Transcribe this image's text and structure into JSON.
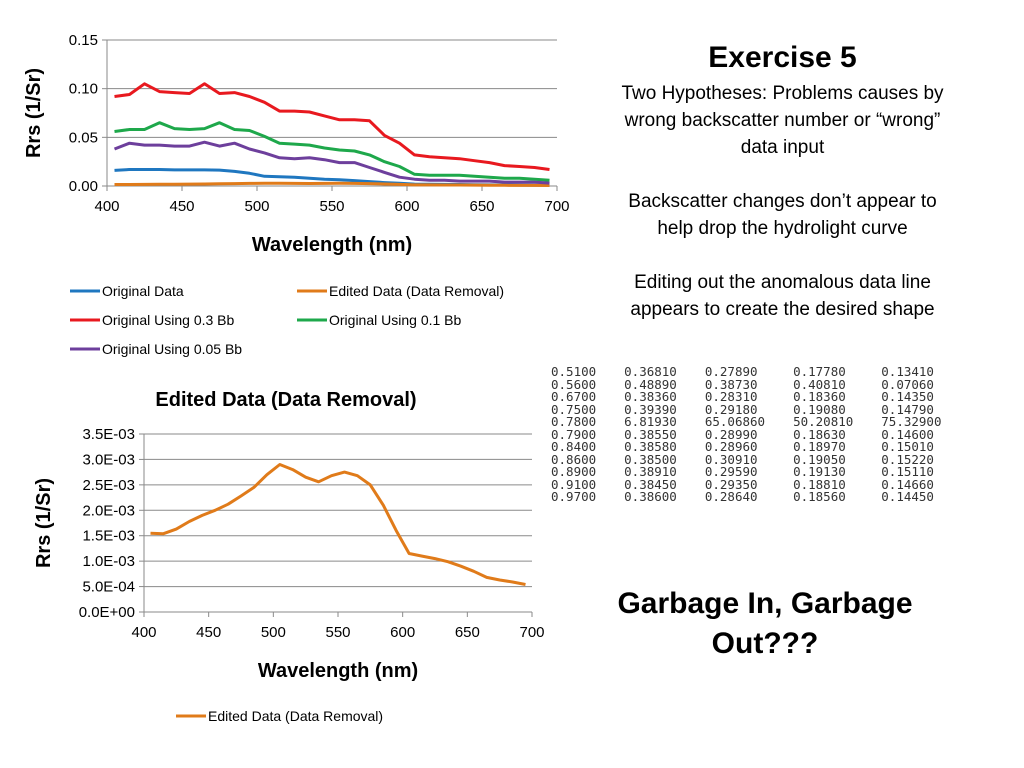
{
  "exercise": {
    "title": "Exercise 5",
    "paragraphs": [
      "Two Hypotheses: Problems causes by wrong backscatter number or “wrong” data input",
      "Backscatter changes don’t appear to help drop the hydrolight curve",
      "Editing out the anomalous data line appears to create the desired shape"
    ],
    "conclusion": "Garbage In, Garbage Out???"
  },
  "data_table": {
    "rows": [
      [
        "0.5100",
        "0.36810",
        "0.27890",
        "0.17780",
        "0.13410"
      ],
      [
        "0.5600",
        "0.48890",
        "0.38730",
        "0.40810",
        "0.07060"
      ],
      [
        "0.6700",
        "0.38360",
        "0.28310",
        "0.18360",
        "0.14350"
      ],
      [
        "0.7500",
        "0.39390",
        "0.29180",
        "0.19080",
        "0.14790"
      ],
      [
        "0.7800",
        "6.81930",
        "65.06860",
        "50.20810",
        "75.32900"
      ],
      [
        "0.7900",
        "0.38550",
        "0.28990",
        "0.18630",
        "0.14600"
      ],
      [
        "0.8400",
        "0.38580",
        "0.28960",
        "0.18970",
        "0.15010"
      ],
      [
        "0.8600",
        "0.38500",
        "0.30910",
        "0.19050",
        "0.15220"
      ],
      [
        "0.8900",
        "0.38910",
        "0.29590",
        "0.19130",
        "0.15110"
      ],
      [
        "0.9100",
        "0.38450",
        "0.29350",
        "0.18810",
        "0.14660"
      ],
      [
        "0.9700",
        "0.38600",
        "0.28640",
        "0.18560",
        "0.14450"
      ]
    ]
  },
  "chart_data": [
    {
      "type": "line",
      "title": "",
      "xlabel": "Wavelength (nm)",
      "ylabel": "Rrs (1/Sr)",
      "xlim": [
        400,
        700
      ],
      "ylim": [
        0,
        0.15
      ],
      "x_ticks": [
        "400",
        "450",
        "500",
        "550",
        "600",
        "650",
        "700"
      ],
      "y_ticks": [
        "0.00",
        "0.05",
        "0.10",
        "0.15"
      ],
      "grid": "horizontal",
      "legend_position": "bottom",
      "x": [
        405,
        415,
        425,
        435,
        445,
        455,
        465,
        475,
        485,
        495,
        505,
        515,
        525,
        535,
        545,
        555,
        565,
        575,
        585,
        595,
        605,
        615,
        625,
        635,
        645,
        655,
        665,
        675,
        685,
        695
      ],
      "series": [
        {
          "name": "Original Data",
          "color": "#1f77c0",
          "values": [
            0.016,
            0.017,
            0.017,
            0.017,
            0.0165,
            0.0165,
            0.0165,
            0.0163,
            0.015,
            0.013,
            0.01,
            0.0095,
            0.009,
            0.008,
            0.007,
            0.0065,
            0.0055,
            0.0045,
            0.0035,
            0.0028,
            0.002,
            0.0018,
            0.0016,
            0.0015,
            0.0013,
            0.0011,
            0.001,
            0.0009,
            0.0008,
            0.0007
          ]
        },
        {
          "name": "Edited Data (Data Removal)",
          "color": "#e07b1a",
          "values": [
            0.00155,
            0.00155,
            0.00165,
            0.0018,
            0.0019,
            0.002,
            0.0021,
            0.0023,
            0.0025,
            0.0027,
            0.0029,
            0.0028,
            0.00265,
            0.00255,
            0.0027,
            0.00275,
            0.0027,
            0.0025,
            0.0021,
            0.0016,
            0.00115,
            0.0011,
            0.00105,
            0.001,
            0.0009,
            0.0008,
            0.00068,
            0.00063,
            0.00058,
            0.00053
          ]
        },
        {
          "name": "Original Using 0.3 Bb",
          "color": "#e8191f",
          "values": [
            0.092,
            0.094,
            0.105,
            0.097,
            0.096,
            0.095,
            0.105,
            0.095,
            0.096,
            0.092,
            0.086,
            0.077,
            0.077,
            0.076,
            0.072,
            0.068,
            0.068,
            0.067,
            0.052,
            0.044,
            0.032,
            0.03,
            0.029,
            0.028,
            0.026,
            0.024,
            0.021,
            0.02,
            0.019,
            0.017
          ]
        },
        {
          "name": "Original Using 0.1 Bb",
          "color": "#1ea84b",
          "values": [
            0.056,
            0.058,
            0.058,
            0.065,
            0.059,
            0.058,
            0.059,
            0.065,
            0.058,
            0.057,
            0.051,
            0.044,
            0.043,
            0.042,
            0.039,
            0.037,
            0.036,
            0.032,
            0.025,
            0.02,
            0.012,
            0.011,
            0.011,
            0.011,
            0.01,
            0.009,
            0.008,
            0.008,
            0.007,
            0.006
          ]
        },
        {
          "name": "Original Using 0.05 Bb",
          "color": "#6d3f9c",
          "values": [
            0.038,
            0.044,
            0.042,
            0.042,
            0.041,
            0.041,
            0.045,
            0.041,
            0.044,
            0.038,
            0.034,
            0.029,
            0.028,
            0.029,
            0.027,
            0.024,
            0.024,
            0.019,
            0.014,
            0.009,
            0.007,
            0.006,
            0.006,
            0.005,
            0.005,
            0.005,
            0.004,
            0.004,
            0.004,
            0.003
          ]
        }
      ]
    },
    {
      "type": "line",
      "title": "Edited Data (Data Removal)",
      "xlabel": "Wavelength (nm)",
      "ylabel": "Rrs (1/Sr)",
      "xlim": [
        400,
        700
      ],
      "ylim": [
        0,
        0.0035
      ],
      "x_ticks": [
        "400",
        "450",
        "500",
        "550",
        "600",
        "650",
        "700"
      ],
      "y_ticks": [
        "0.0E+00",
        "5.0E-04",
        "1.0E-03",
        "1.5E-03",
        "2.0E-03",
        "2.5E-03",
        "3.0E-03",
        "3.5E-03"
      ],
      "grid": "horizontal",
      "legend_position": "bottom",
      "x": [
        405,
        415,
        425,
        435,
        445,
        455,
        465,
        475,
        485,
        495,
        505,
        515,
        525,
        535,
        545,
        555,
        565,
        575,
        585,
        595,
        605,
        615,
        625,
        635,
        645,
        655,
        665,
        675,
        685,
        695
      ],
      "series": [
        {
          "name": "Edited Data (Data Removal)",
          "color": "#e07b1a",
          "values": [
            0.00155,
            0.00154,
            0.00163,
            0.00178,
            0.0019,
            0.002,
            0.00212,
            0.00228,
            0.00245,
            0.0027,
            0.0029,
            0.0028,
            0.00265,
            0.00256,
            0.00268,
            0.00275,
            0.00268,
            0.0025,
            0.0021,
            0.0016,
            0.00115,
            0.0011,
            0.00105,
            0.00099,
            0.0009,
            0.0008,
            0.00068,
            0.00063,
            0.00059,
            0.00054
          ]
        }
      ]
    }
  ]
}
